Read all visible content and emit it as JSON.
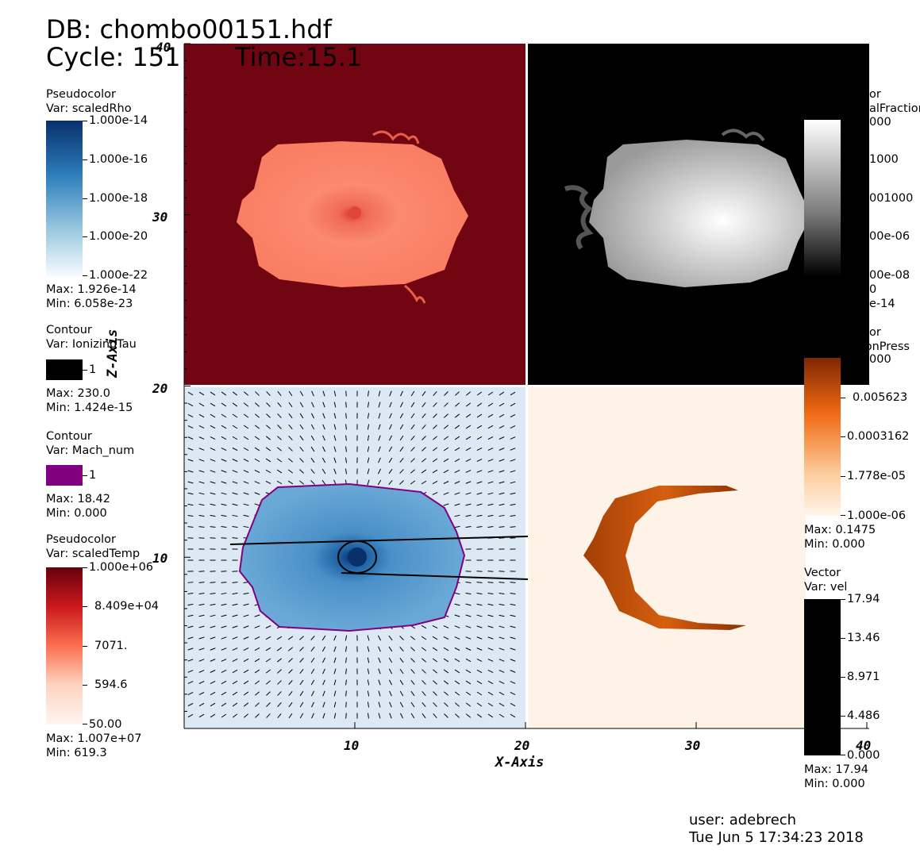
{
  "header": {
    "db": "DB: chombo00151.hdf",
    "cycle": "Cycle: 151",
    "time": "Time:15.1"
  },
  "footer": {
    "user": "user: adebrech",
    "date": "Tue Jun  5 17:34:23 2018"
  },
  "legends": {
    "scaledRho": {
      "title": "Pseudocolor",
      "var": "Var: scaledRho",
      "ticks": [
        "1.000e-14",
        "1.000e-16",
        "1.000e-18",
        "1.000e-20",
        "1.000e-22"
      ],
      "max": "Max:  1.926e-14",
      "min": "Min:  6.058e-23",
      "colors": [
        "#08306b",
        "#2d7dbb",
        "#9ac8e0",
        "#f7fbff"
      ]
    },
    "ionizingTau": {
      "title": "Contour",
      "var": "Var: IonizingTau",
      "level": "1",
      "max": "Max:  230.0",
      "min": "Min:  1.424e-15",
      "color": "#000000"
    },
    "machNum": {
      "title": "Contour",
      "var": "Var: Mach_num",
      "level": "1",
      "max": "Max:  18.42",
      "min": "Min:  0.000",
      "color": "#800080"
    },
    "scaledTemp": {
      "title": "Pseudocolor",
      "var": "Var: scaledTemp",
      "ticks": [
        "1.000e+06",
        "8.409e+04",
        "7071.",
        "594.6",
        "50.00"
      ],
      "max": "Max:  1.007e+07",
      "min": "Min:  619.3",
      "colors": [
        "#67000d",
        "#cb181d",
        "#fb7050",
        "#fdd4c2",
        "#fff5f0"
      ]
    },
    "neutralFraction": {
      "title_visible": "or",
      "var_visible": "alFraction",
      "top_visible": "000",
      "ticks": [
        "1000",
        "001000",
        "00e-06",
        "00e-08"
      ],
      "min_visible": "e-14",
      "extra_visible": "0",
      "colors": [
        "#ffffff",
        "#000000"
      ]
    },
    "radiationPress": {
      "title_visible": "or",
      "var_visible": "tionPress",
      "top_visible": "000",
      "ticks": [
        "0.005623",
        "0.0003162",
        "1.778e-05",
        "1.000e-06"
      ],
      "max": "Max:  0.1475",
      "min": "Min:  0.000",
      "colors": [
        "#7f2704",
        "#f16913",
        "#fdd0a2",
        "#fff5eb"
      ]
    },
    "vel": {
      "title": "Vector",
      "var": "Var: vel",
      "ticks": [
        "17.94",
        "13.46",
        "8.971",
        "4.486",
        "0.000"
      ],
      "max": "Max:  17.94",
      "min": "Min:  0.000",
      "color": "#000000"
    }
  },
  "chart_data": {
    "type": "heatmap",
    "xlabel": "X-Axis",
    "ylabel": "Z-Axis",
    "xlim": [
      0,
      40
    ],
    "ylim": [
      0,
      40
    ],
    "x_ticks": [
      "10",
      "20",
      "30",
      "40"
    ],
    "y_ticks": [
      "10",
      "20",
      "30",
      "40"
    ],
    "panels": [
      {
        "variable": "scaledTemp",
        "quadrant": "top-left",
        "background": "#720512",
        "blob": "#fb8a6f",
        "center": [
          10,
          30
        ]
      },
      {
        "variable": "neutralFraction",
        "quadrant": "top-right",
        "background": "#000000",
        "blob": "#c9c9c9",
        "center": [
          30,
          30
        ]
      },
      {
        "variable": "scaledRho",
        "quadrant": "bottom-left",
        "background": "#dce9f5",
        "blob": "#4f95cc",
        "center": [
          10,
          10
        ]
      },
      {
        "variable": "radiationPress",
        "quadrant": "bottom-right",
        "background": "#fff3e8",
        "blob": "#c9520c",
        "center": [
          30,
          10
        ]
      }
    ]
  }
}
